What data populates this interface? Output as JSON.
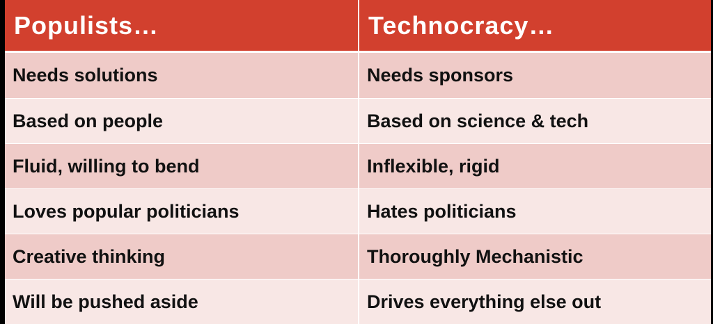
{
  "table": {
    "headers": {
      "left": "Populists…",
      "right": "Technocracy…"
    },
    "rows": [
      {
        "left": "Needs solutions",
        "right": "Needs sponsors"
      },
      {
        "left": "Based on people",
        "right": "Based on science & tech"
      },
      {
        "left": "Fluid, willing to bend",
        "right": "Inflexible, rigid"
      },
      {
        "left": "Loves popular politicians",
        "right": "Hates politicians"
      },
      {
        "left": "Creative thinking",
        "right": "Thoroughly Mechanistic"
      },
      {
        "left": "Will be pushed aside",
        "right": "Drives everything else out"
      }
    ]
  },
  "colors": {
    "header_background": "#d2402e",
    "row_dark": "#efcbc8",
    "row_light": "#f8e7e5",
    "page_background": "#000000"
  }
}
